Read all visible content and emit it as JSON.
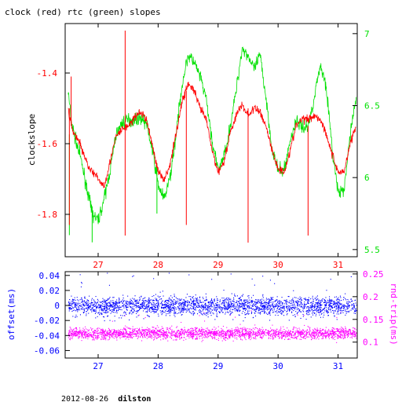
{
  "title": "clock (red) rtc (green) slopes",
  "footer": {
    "date": "2012-08-26",
    "host": "dilston"
  },
  "colors": {
    "clock": "#ff0000",
    "rtc": "#00e000",
    "offset": "#0000ff",
    "rndtrip": "#ff00ff",
    "frame": "#000000"
  },
  "chart_data": [
    {
      "type": "line",
      "ylabel": "clockslope",
      "y2label": "",
      "xlim": [
        26.45,
        31.32
      ],
      "ylim": [
        -1.92,
        -1.26
      ],
      "y2lim": [
        5.45,
        7.07
      ],
      "xticks": [
        27,
        28,
        29,
        30,
        31
      ],
      "xtick_labels": [
        "27",
        "28",
        "29",
        "30",
        "31"
      ],
      "yticks": [
        -1.4,
        -1.6,
        -1.8
      ],
      "ytick_labels": [
        "-1.4",
        "-1.6",
        "-1.8"
      ],
      "y2ticks": [
        7,
        6.5,
        6,
        5.5
      ],
      "y2tick_labels": [
        "7",
        "6.5",
        "6",
        "5.5"
      ],
      "series": [
        {
          "name": "clock",
          "axis": "left",
          "color": "#ff0000",
          "x": [
            26.5,
            26.55,
            26.6,
            26.7,
            26.8,
            26.9,
            27.0,
            27.1,
            27.2,
            27.3,
            27.4,
            27.5,
            27.6,
            27.7,
            27.8,
            27.9,
            28.0,
            28.1,
            28.2,
            28.3,
            28.4,
            28.5,
            28.6,
            28.7,
            28.8,
            28.9,
            29.0,
            29.1,
            29.2,
            29.3,
            29.4,
            29.5,
            29.6,
            29.7,
            29.8,
            29.9,
            30.0,
            30.1,
            30.2,
            30.3,
            30.4,
            30.5,
            30.6,
            30.7,
            30.8,
            30.9,
            31.0,
            31.1,
            31.2,
            31.3
          ],
          "y": [
            -1.5,
            -1.55,
            -1.57,
            -1.6,
            -1.65,
            -1.68,
            -1.7,
            -1.72,
            -1.65,
            -1.58,
            -1.56,
            -1.55,
            -1.53,
            -1.51,
            -1.53,
            -1.6,
            -1.68,
            -1.7,
            -1.66,
            -1.57,
            -1.48,
            -1.43,
            -1.45,
            -1.5,
            -1.53,
            -1.62,
            -1.68,
            -1.65,
            -1.57,
            -1.52,
            -1.49,
            -1.52,
            -1.5,
            -1.51,
            -1.55,
            -1.62,
            -1.67,
            -1.68,
            -1.62,
            -1.55,
            -1.53,
            -1.53,
            -1.52,
            -1.53,
            -1.57,
            -1.63,
            -1.68,
            -1.68,
            -1.6,
            -1.55
          ]
        },
        {
          "name": "rtc",
          "axis": "right",
          "color": "#00e000",
          "x": [
            26.5,
            26.55,
            26.6,
            26.7,
            26.8,
            26.9,
            27.0,
            27.1,
            27.2,
            27.3,
            27.4,
            27.5,
            27.6,
            27.7,
            27.8,
            27.9,
            28.0,
            28.1,
            28.2,
            28.3,
            28.4,
            28.5,
            28.6,
            28.7,
            28.8,
            28.9,
            29.0,
            29.1,
            29.2,
            29.3,
            29.4,
            29.5,
            29.6,
            29.7,
            29.8,
            29.9,
            30.0,
            30.1,
            30.2,
            30.3,
            30.4,
            30.5,
            30.6,
            30.7,
            30.8,
            30.9,
            31.0,
            31.1,
            31.2,
            31.3
          ],
          "y": [
            6.6,
            6.4,
            6.3,
            6.15,
            5.95,
            5.75,
            5.7,
            5.85,
            6.05,
            6.3,
            6.38,
            6.4,
            6.4,
            6.42,
            6.38,
            6.2,
            5.95,
            5.85,
            6.0,
            6.3,
            6.65,
            6.85,
            6.8,
            6.7,
            6.55,
            6.25,
            6.05,
            6.15,
            6.35,
            6.6,
            6.9,
            6.85,
            6.75,
            6.85,
            6.55,
            6.2,
            6.05,
            6.05,
            6.25,
            6.4,
            6.35,
            6.35,
            6.55,
            6.78,
            6.65,
            6.2,
            5.9,
            5.9,
            6.3,
            6.55
          ]
        }
      ]
    },
    {
      "type": "scatter",
      "ylabel": "offset(ms)",
      "y2label": "rnd-trip(ms)",
      "xlim": [
        26.45,
        31.32
      ],
      "ylim": [
        -0.07,
        0.045
      ],
      "y2lim": [
        0.065,
        0.255
      ],
      "xticks": [
        27,
        28,
        29,
        30,
        31
      ],
      "xtick_labels": [
        "27",
        "28",
        "29",
        "30",
        "31"
      ],
      "yticks": [
        0.04,
        0.02,
        0,
        -0.02,
        -0.04,
        -0.06
      ],
      "ytick_labels": [
        "0.04",
        "0.02",
        "0",
        "-0.02",
        "-0.04",
        "-0.06"
      ],
      "y2ticks": [
        0.25,
        0.2,
        0.15,
        0.1
      ],
      "y2tick_labels": [
        "0.25",
        "0.2",
        "0.15",
        "0.1"
      ],
      "series": [
        {
          "name": "offset",
          "axis": "left",
          "color": "#0000ff",
          "x_range": [
            26.5,
            31.3
          ],
          "y_center": 0.0,
          "y_spread": 0.012
        },
        {
          "name": "rnd-trip",
          "axis": "right",
          "color": "#ff00ff",
          "x_range": [
            26.5,
            31.3
          ],
          "y_center": 0.12,
          "y_spread": 0.012
        }
      ]
    }
  ]
}
